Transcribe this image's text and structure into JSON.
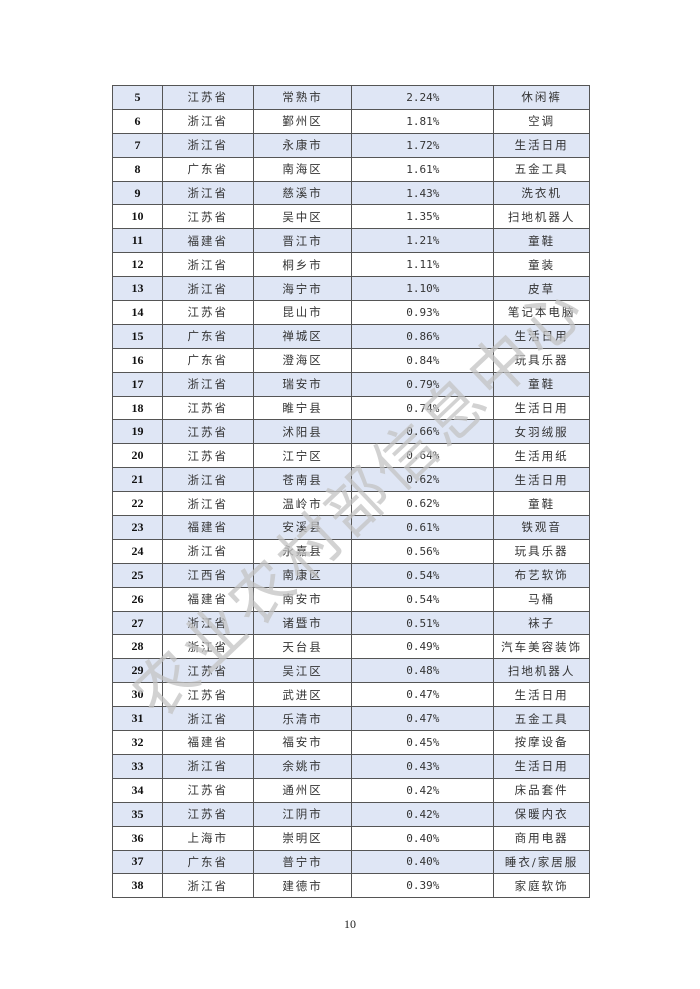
{
  "table": {
    "rows": [
      {
        "rank": "5",
        "province": "江苏省",
        "county": "常熟市",
        "share": "2.24%",
        "category": "休闲裤"
      },
      {
        "rank": "6",
        "province": "浙江省",
        "county": "鄞州区",
        "share": "1.81%",
        "category": "空调"
      },
      {
        "rank": "7",
        "province": "浙江省",
        "county": "永康市",
        "share": "1.72%",
        "category": "生活日用"
      },
      {
        "rank": "8",
        "province": "广东省",
        "county": "南海区",
        "share": "1.61%",
        "category": "五金工具"
      },
      {
        "rank": "9",
        "province": "浙江省",
        "county": "慈溪市",
        "share": "1.43%",
        "category": "洗衣机"
      },
      {
        "rank": "10",
        "province": "江苏省",
        "county": "吴中区",
        "share": "1.35%",
        "category": "扫地机器人"
      },
      {
        "rank": "11",
        "province": "福建省",
        "county": "晋江市",
        "share": "1.21%",
        "category": "童鞋"
      },
      {
        "rank": "12",
        "province": "浙江省",
        "county": "桐乡市",
        "share": "1.11%",
        "category": "童装"
      },
      {
        "rank": "13",
        "province": "浙江省",
        "county": "海宁市",
        "share": "1.10%",
        "category": "皮草"
      },
      {
        "rank": "14",
        "province": "江苏省",
        "county": "昆山市",
        "share": "0.93%",
        "category": "笔记本电脑"
      },
      {
        "rank": "15",
        "province": "广东省",
        "county": "禅城区",
        "share": "0.86%",
        "category": "生活日用"
      },
      {
        "rank": "16",
        "province": "广东省",
        "county": "澄海区",
        "share": "0.84%",
        "category": "玩具乐器"
      },
      {
        "rank": "17",
        "province": "浙江省",
        "county": "瑞安市",
        "share": "0.79%",
        "category": "童鞋"
      },
      {
        "rank": "18",
        "province": "江苏省",
        "county": "睢宁县",
        "share": "0.74%",
        "category": "生活日用"
      },
      {
        "rank": "19",
        "province": "江苏省",
        "county": "沭阳县",
        "share": "0.66%",
        "category": "女羽绒服"
      },
      {
        "rank": "20",
        "province": "江苏省",
        "county": "江宁区",
        "share": "0.64%",
        "category": "生活用纸"
      },
      {
        "rank": "21",
        "province": "浙江省",
        "county": "苍南县",
        "share": "0.62%",
        "category": "生活日用"
      },
      {
        "rank": "22",
        "province": "浙江省",
        "county": "温岭市",
        "share": "0.62%",
        "category": "童鞋"
      },
      {
        "rank": "23",
        "province": "福建省",
        "county": "安溪县",
        "share": "0.61%",
        "category": "铁观音"
      },
      {
        "rank": "24",
        "province": "浙江省",
        "county": "永嘉县",
        "share": "0.56%",
        "category": "玩具乐器"
      },
      {
        "rank": "25",
        "province": "江西省",
        "county": "南康区",
        "share": "0.54%",
        "category": "布艺软饰"
      },
      {
        "rank": "26",
        "province": "福建省",
        "county": "南安市",
        "share": "0.54%",
        "category": "马桶"
      },
      {
        "rank": "27",
        "province": "浙江省",
        "county": "诸暨市",
        "share": "0.51%",
        "category": "袜子"
      },
      {
        "rank": "28",
        "province": "浙江省",
        "county": "天台县",
        "share": "0.49%",
        "category": "汽车美容装饰"
      },
      {
        "rank": "29",
        "province": "江苏省",
        "county": "吴江区",
        "share": "0.48%",
        "category": "扫地机器人"
      },
      {
        "rank": "30",
        "province": "江苏省",
        "county": "武进区",
        "share": "0.47%",
        "category": "生活日用"
      },
      {
        "rank": "31",
        "province": "浙江省",
        "county": "乐清市",
        "share": "0.47%",
        "category": "五金工具"
      },
      {
        "rank": "32",
        "province": "福建省",
        "county": "福安市",
        "share": "0.45%",
        "category": "按摩设备"
      },
      {
        "rank": "33",
        "province": "浙江省",
        "county": "余姚市",
        "share": "0.43%",
        "category": "生活日用"
      },
      {
        "rank": "34",
        "province": "江苏省",
        "county": "通州区",
        "share": "0.42%",
        "category": "床品套件"
      },
      {
        "rank": "35",
        "province": "江苏省",
        "county": "江阴市",
        "share": "0.42%",
        "category": "保暖内衣"
      },
      {
        "rank": "36",
        "province": "上海市",
        "county": "崇明区",
        "share": "0.40%",
        "category": "商用电器"
      },
      {
        "rank": "37",
        "province": "广东省",
        "county": "普宁市",
        "share": "0.40%",
        "category": "睡衣/家居服"
      },
      {
        "rank": "38",
        "province": "浙江省",
        "county": "建德市",
        "share": "0.39%",
        "category": "家庭软饰"
      }
    ],
    "shade_color": "#d9e2f3"
  },
  "page_number": "10",
  "watermark": "农业农村部信息中心"
}
